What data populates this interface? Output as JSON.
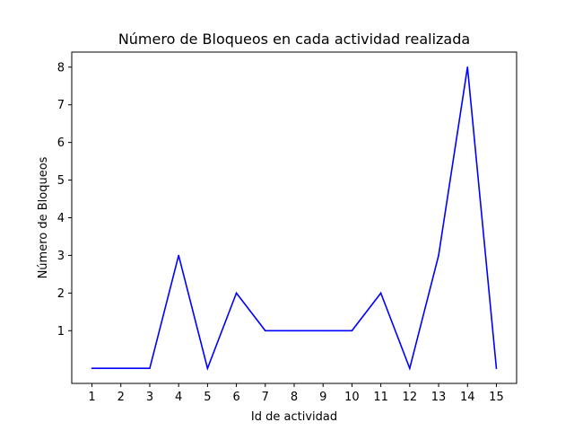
{
  "chart_data": {
    "type": "line",
    "title": "Número de Bloqueos en cada actividad realizada",
    "xlabel": "Id de actividad",
    "ylabel": "Número de Bloqueos",
    "x": [
      1,
      2,
      3,
      4,
      5,
      6,
      7,
      8,
      9,
      10,
      11,
      12,
      13,
      14,
      15
    ],
    "series": [
      {
        "values": [
          0,
          0,
          0,
          3,
          0,
          2,
          1,
          1,
          1,
          1,
          2,
          0,
          3,
          8,
          0
        ],
        "color": "#0000ff"
      }
    ],
    "xticks": [
      "1",
      "2",
      "3",
      "4",
      "5",
      "6",
      "7",
      "8",
      "9",
      "10",
      "11",
      "12",
      "13",
      "14",
      "15"
    ],
    "yticks": [
      "1",
      "2",
      "3",
      "4",
      "5",
      "6",
      "7",
      "8"
    ],
    "xlim": [
      0.3,
      15.7
    ],
    "ylim": [
      -0.4,
      8.4
    ],
    "grid": false,
    "legend": "none"
  }
}
